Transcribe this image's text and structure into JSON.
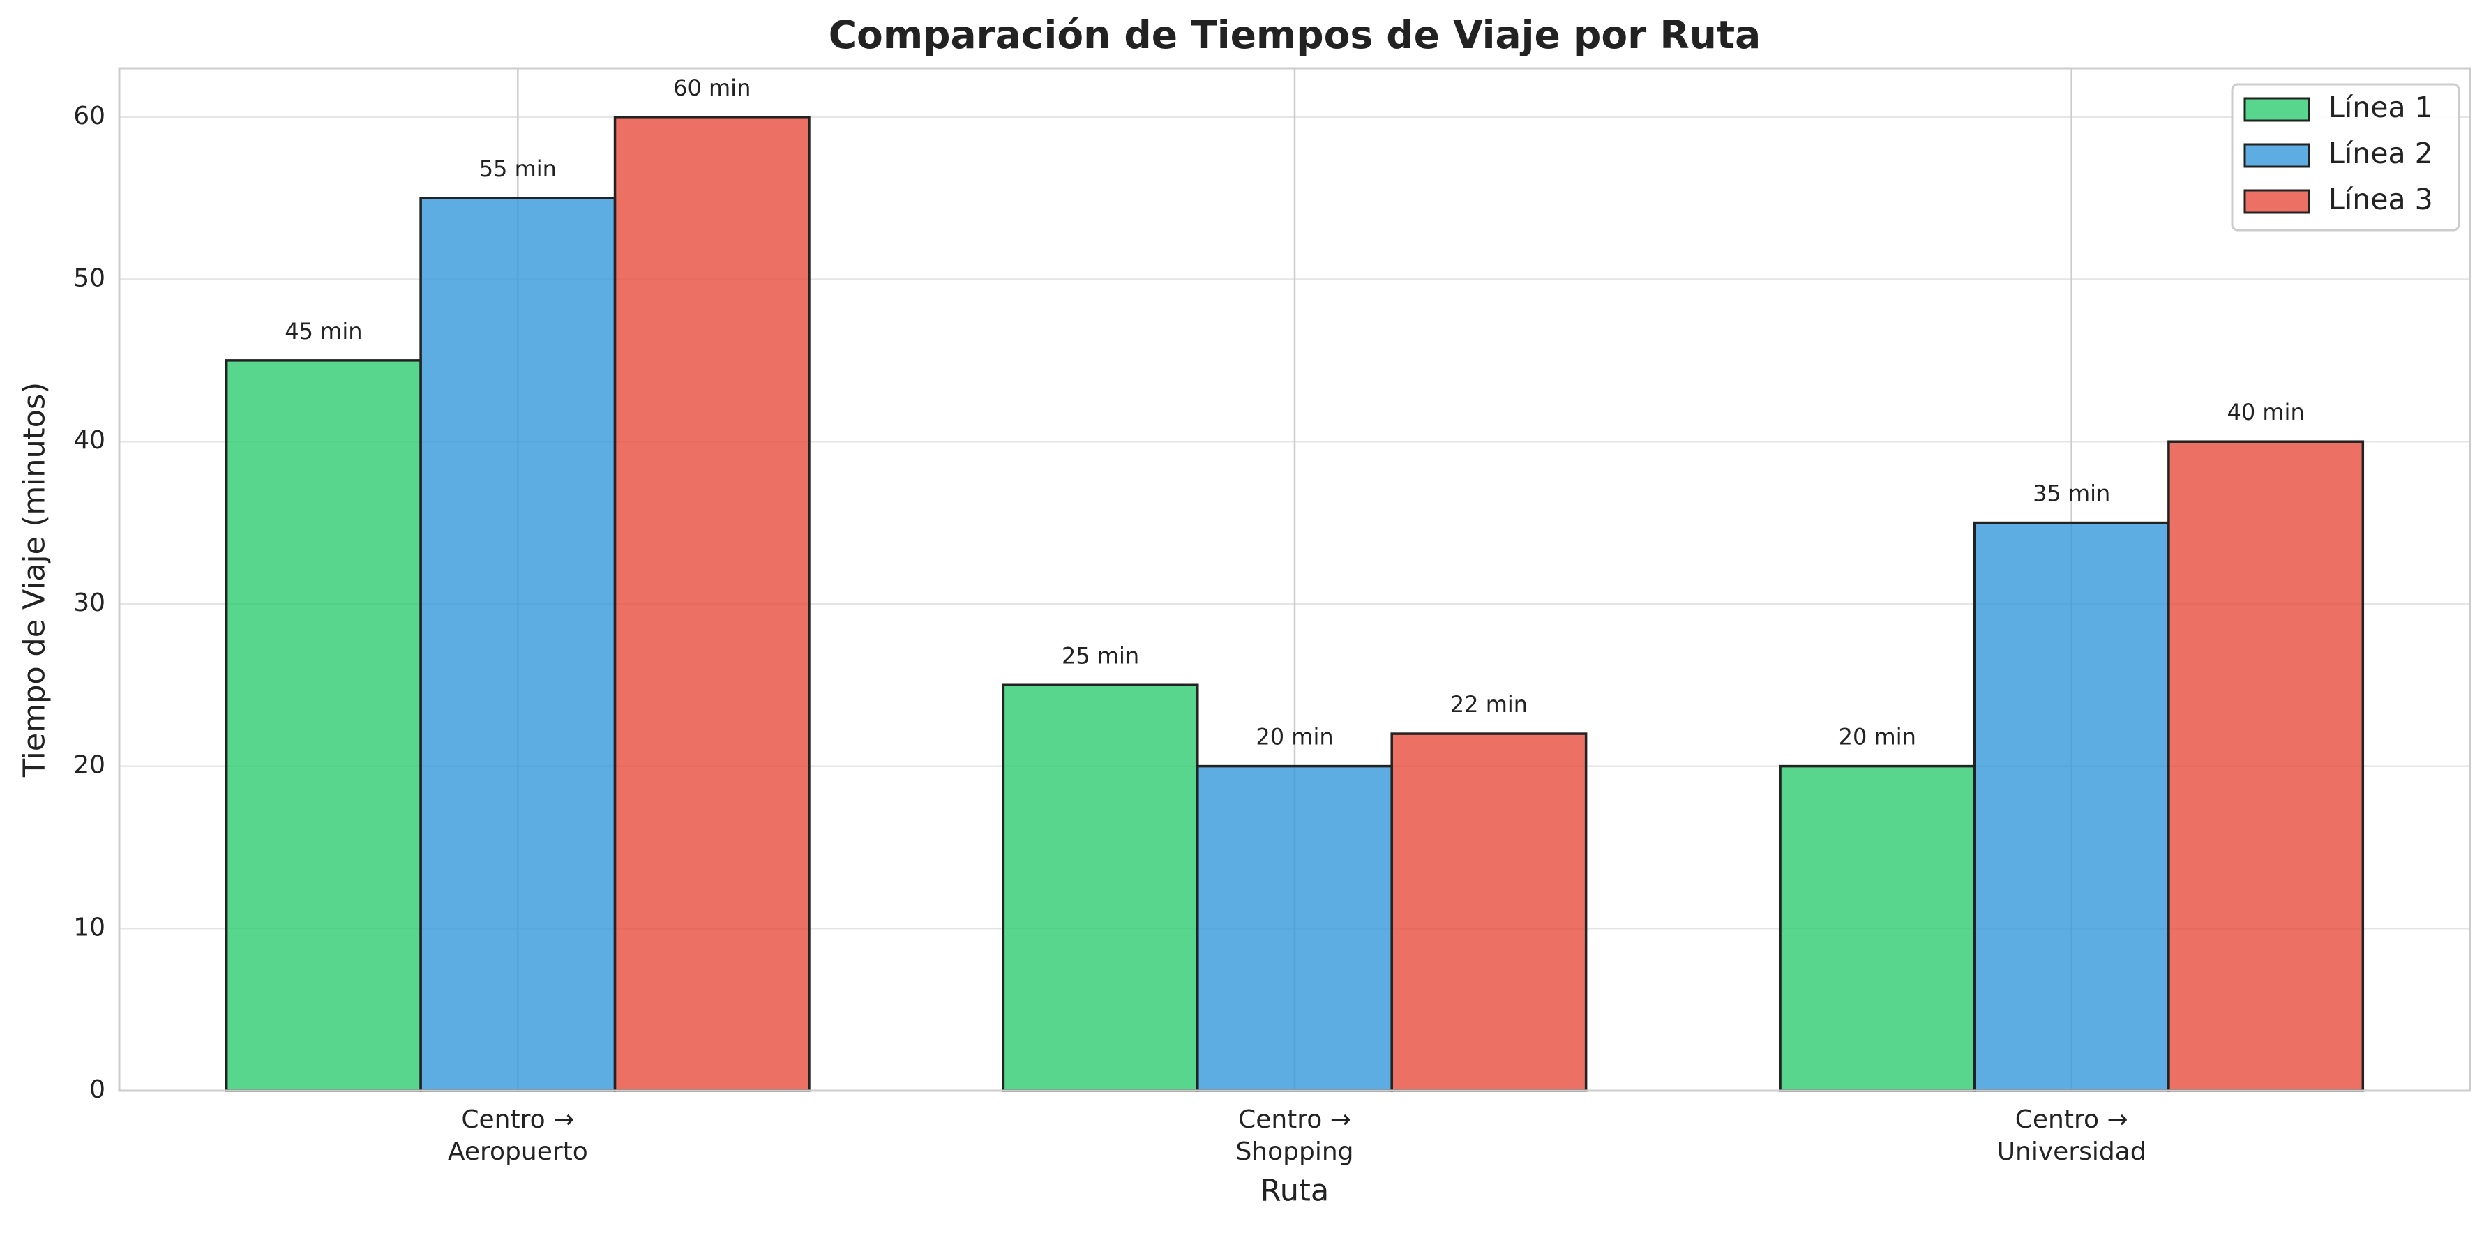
{
  "chart_data": {
    "type": "bar",
    "title": "Comparación de Tiempos de Viaje por Ruta",
    "xlabel": "Ruta",
    "ylabel": "Tiempo de Viaje (minutos)",
    "categories": [
      "Centro →\nAeropuerto",
      "Centro →\nShopping",
      "Centro →\nUniversidad"
    ],
    "series": [
      {
        "name": "Línea 1",
        "color": "#2ecc71",
        "values": [
          45,
          25,
          20
        ],
        "value_labels": [
          "45 min",
          "25 min",
          "20 min"
        ]
      },
      {
        "name": "Línea 2",
        "color": "#3498db",
        "values": [
          55,
          20,
          35
        ],
        "value_labels": [
          "55 min",
          "20 min",
          "35 min"
        ]
      },
      {
        "name": "Línea 3",
        "color": "#e74c3c",
        "values": [
          60,
          22,
          40
        ],
        "value_labels": [
          "60 min",
          "22 min",
          "40 min"
        ]
      }
    ],
    "ylim": [
      0,
      63
    ],
    "yticks": [
      0,
      10,
      20,
      30,
      40,
      50,
      60
    ],
    "grid": true,
    "legend": "upper right"
  }
}
